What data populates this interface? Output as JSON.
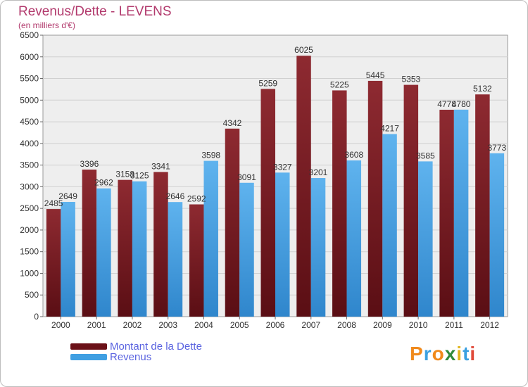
{
  "header": {
    "title": "Revenus/Dette - LEVENS",
    "subtitle": "(en milliers d'€)"
  },
  "chart_data": {
    "type": "bar",
    "title": "Revenus/Dette - LEVENS",
    "subtitle": "(en milliers d'€)",
    "categories": [
      "2000",
      "2001",
      "2002",
      "2003",
      "2004",
      "2005",
      "2006",
      "2007",
      "2008",
      "2009",
      "2010",
      "2011",
      "2012"
    ],
    "series": [
      {
        "name": "Montant de la Dette",
        "color": "#7d1c24",
        "values": [
          2485,
          3396,
          3158,
          3341,
          2592,
          4342,
          5259,
          6025,
          5225,
          5445,
          5353,
          4778,
          5132
        ]
      },
      {
        "name": "Revenus",
        "color": "#3f9fe2",
        "values": [
          2649,
          2962,
          3125,
          2646,
          3598,
          3091,
          3327,
          3201,
          3608,
          4217,
          3585,
          4780,
          3773
        ]
      }
    ],
    "ylim": [
      0,
      6500
    ],
    "yticks": [
      0,
      500,
      1000,
      1500,
      2000,
      2500,
      3000,
      3500,
      4000,
      4500,
      5000,
      5500,
      6000,
      6500
    ],
    "grid": true,
    "legend": "bottom-left"
  },
  "legend": [
    {
      "label": "Montant de la Dette",
      "color": "#6b1118"
    },
    {
      "label": "Revenus",
      "color": "#3f9fe2"
    }
  ],
  "logo": {
    "letters": [
      "P",
      "r",
      "o",
      "x",
      "i",
      "t",
      "i"
    ],
    "colors": [
      "#f08a1c",
      "#3aa0e0",
      "#f08a1c",
      "#2f8a3a",
      "#e0b51c",
      "#3aa0e0",
      "#e04a3a"
    ]
  }
}
